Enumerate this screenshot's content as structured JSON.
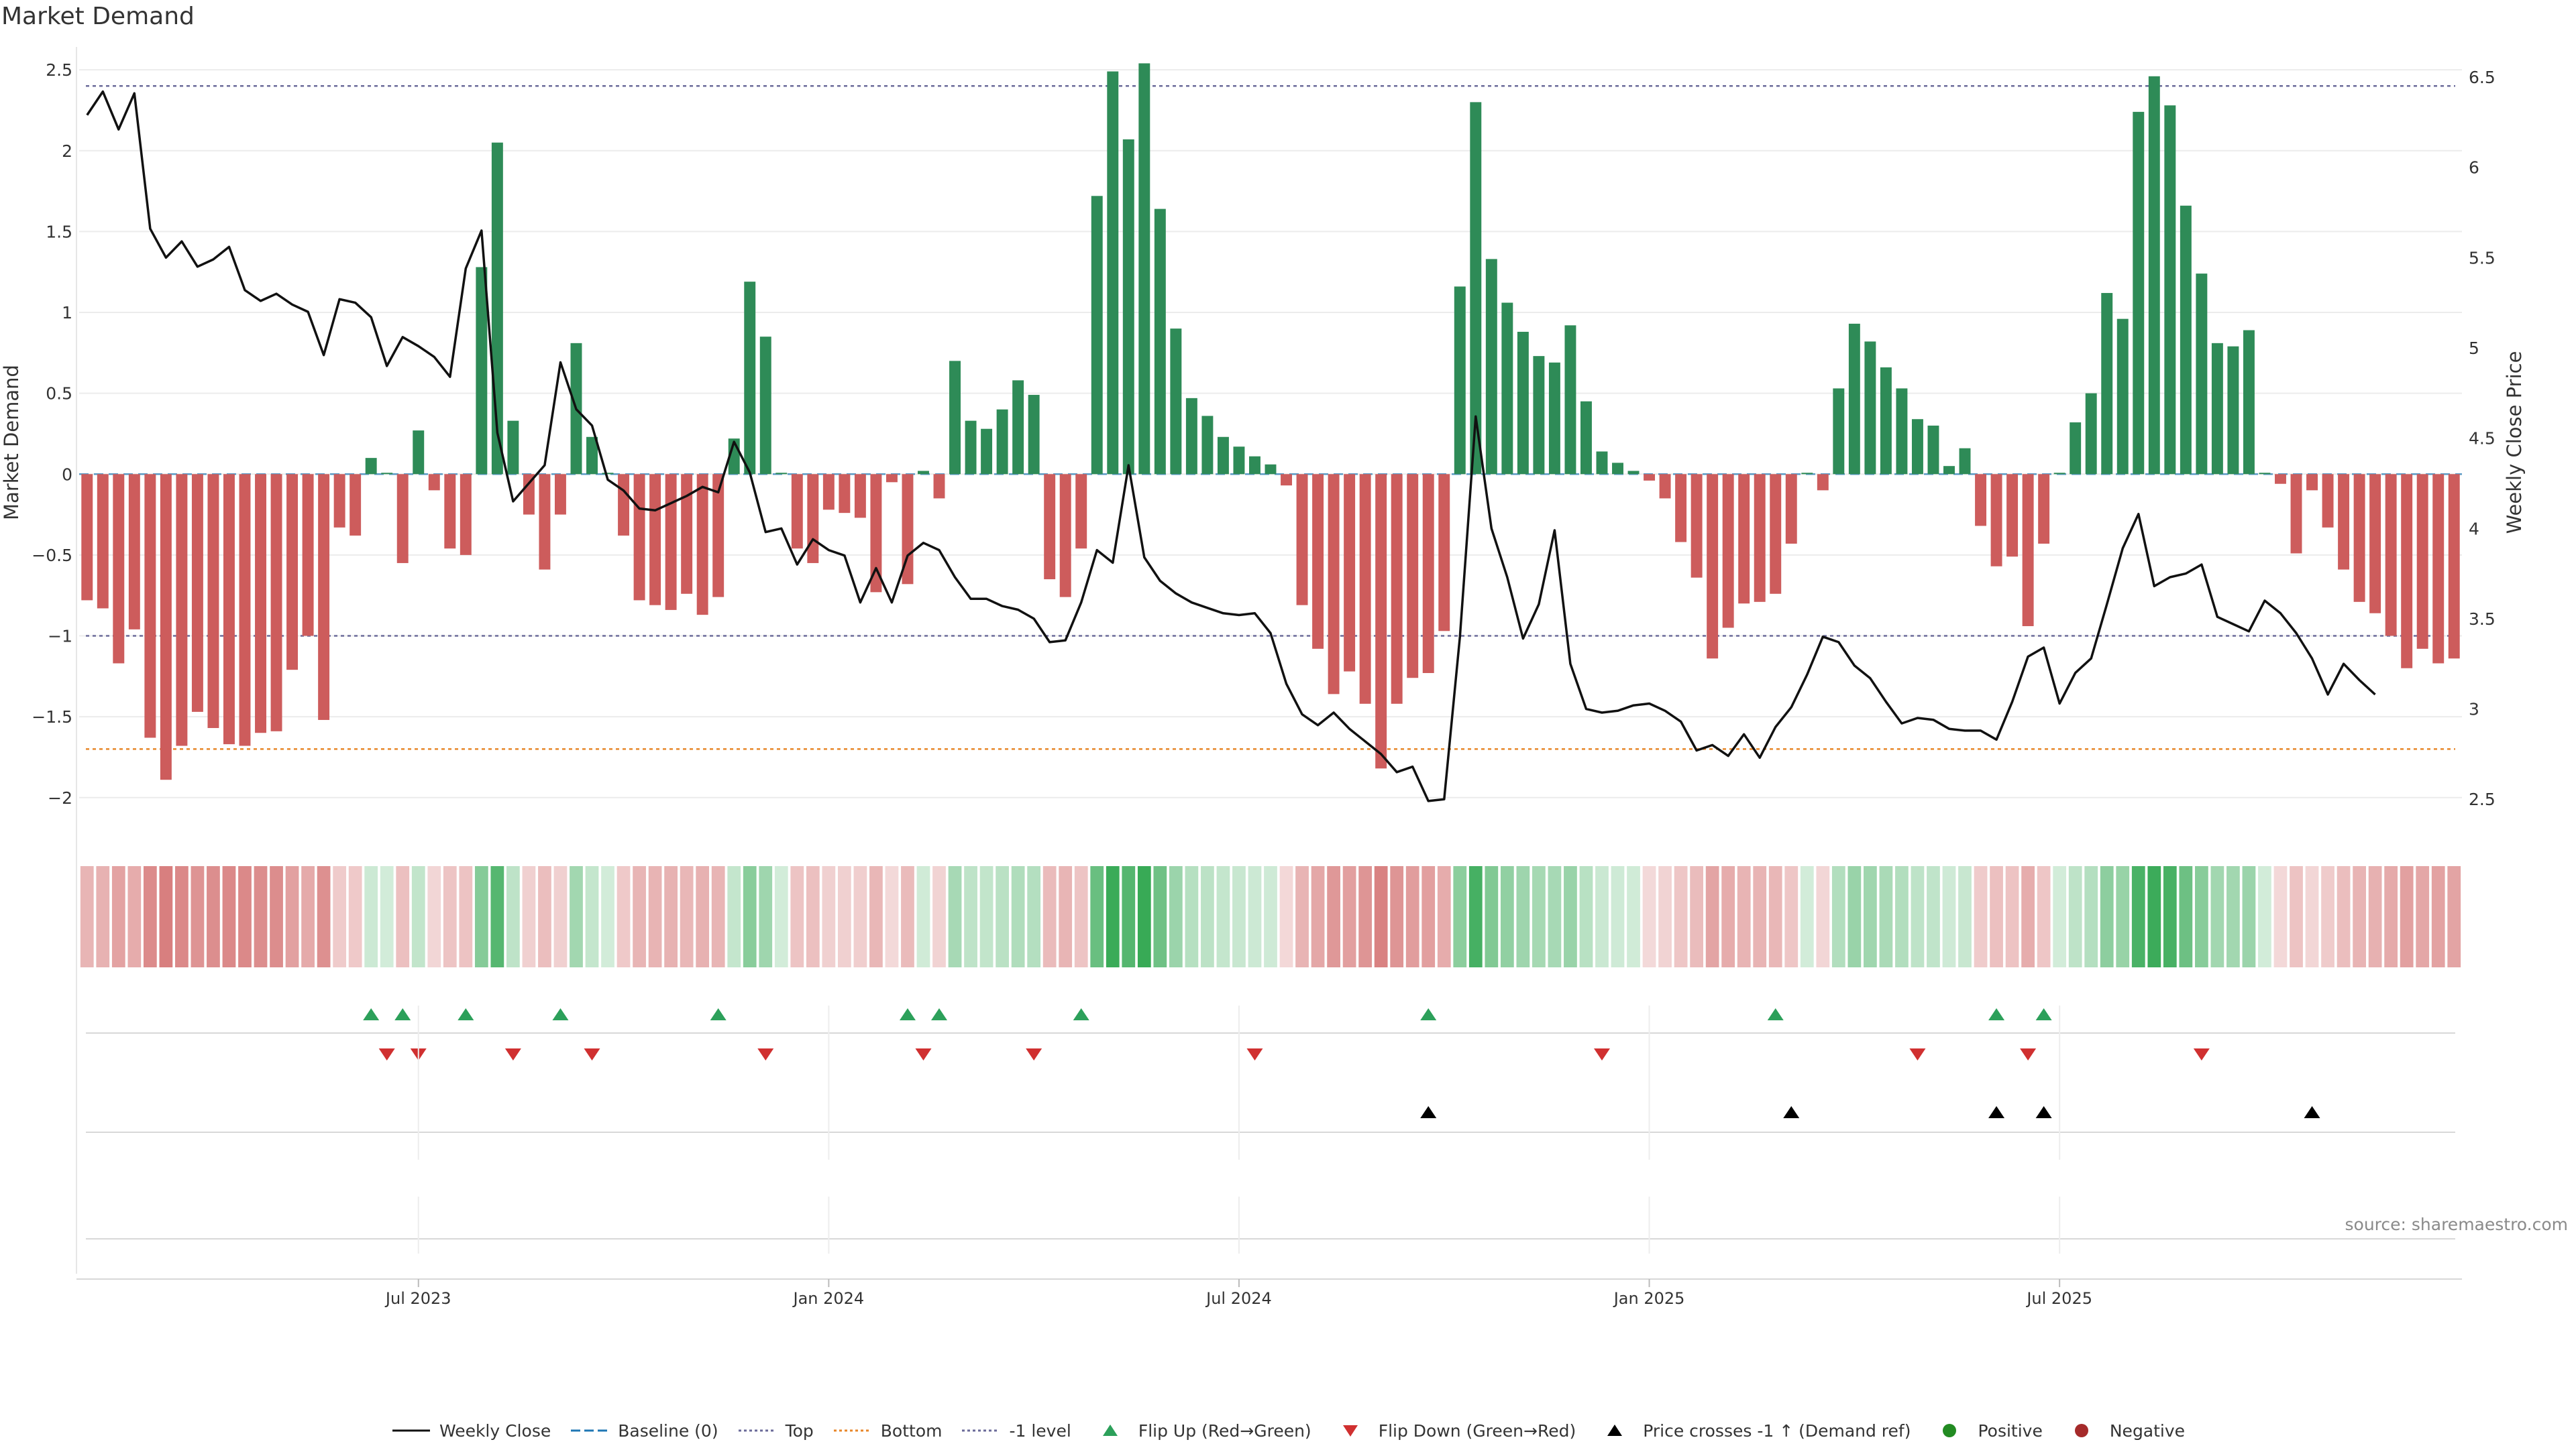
{
  "title": "Market Demand",
  "source": "source: sharemaestro.com",
  "colors": {
    "positive": "#2e8b57",
    "negative": "#cd5c5c",
    "close": "#111111",
    "top_line": "#6b6b9a",
    "bottom_line": "#e8872b",
    "minus1_line": "#6b6b9a",
    "flip_up": "#2ca05a",
    "flip_down": "#d03030",
    "cross": "#000000",
    "pos_dot": "#228b22",
    "neg_dot": "#a52a2a",
    "baseline": "#1f77b4"
  },
  "chart_data": {
    "type": "bar",
    "title": "Market Demand",
    "ylabel": "Market Demand",
    "y2label": "Weekly Close Price",
    "ylim": [
      -2.2,
      2.6
    ],
    "y2lim": [
      2.33,
      6.63
    ],
    "yticks": [
      "2.5",
      "2",
      "1.5",
      "1",
      "0.5",
      "0",
      "−0.5",
      "−1",
      "−1.5",
      "−2"
    ],
    "yticks_values": [
      2.5,
      2,
      1.5,
      1,
      0.5,
      0,
      -0.5,
      -1,
      -1.5,
      -2
    ],
    "y2ticks": [
      "6.5",
      "6",
      "5.5",
      "5",
      "4.5",
      "4",
      "3.5",
      "3",
      "2.5"
    ],
    "y2ticks_values": [
      6.5,
      6,
      5.5,
      5,
      4.5,
      4,
      3.5,
      3,
      2.5
    ],
    "xticks": [
      "Jul 2023",
      "Jan 2024",
      "Jul 2024",
      "Jan 2025",
      "Jul 2025"
    ],
    "xticks_index": [
      21,
      47,
      73,
      99,
      125
    ],
    "top_level": 2.4,
    "bottom_level": -1.7,
    "minus1_level": -1,
    "demand": [
      -0.78,
      -0.83,
      -1.17,
      -0.96,
      -1.63,
      -1.89,
      -1.68,
      -1.47,
      -1.57,
      -1.67,
      -1.68,
      -1.6,
      -1.59,
      -1.21,
      -1.0,
      -1.52,
      -0.33,
      -0.38,
      0.1,
      0.0,
      -0.55,
      0.27,
      -0.1,
      -0.46,
      -0.5,
      1.28,
      2.05,
      0.33,
      -0.25,
      -0.59,
      -0.25,
      0.81,
      0.23,
      0.0,
      -0.38,
      -0.78,
      -0.81,
      -0.84,
      -0.74,
      -0.87,
      -0.76,
      0.22,
      1.19,
      0.85,
      0.0,
      -0.46,
      -0.55,
      -0.22,
      -0.24,
      -0.27,
      -0.73,
      -0.05,
      -0.68,
      0.02,
      -0.15,
      0.7,
      0.33,
      0.28,
      0.4,
      0.58,
      0.49,
      -0.65,
      -0.76,
      -0.46,
      1.72,
      2.49,
      2.07,
      2.54,
      1.64,
      0.9,
      0.47,
      0.36,
      0.23,
      0.17,
      0.11,
      0.06,
      -0.07,
      -0.81,
      -1.08,
      -1.36,
      -1.22,
      -1.42,
      -1.82,
      -1.42,
      -1.26,
      -1.23,
      -0.97,
      1.16,
      2.3,
      1.33,
      1.06,
      0.88,
      0.73,
      0.69,
      0.92,
      0.45,
      0.14,
      0.07,
      0.02,
      -0.04,
      -0.15,
      -0.42,
      -0.64,
      -1.14,
      -0.95,
      -0.8,
      -0.79,
      -0.74,
      -0.43,
      0.0,
      -0.1,
      0.53,
      0.93,
      0.82,
      0.66,
      0.53,
      0.34,
      0.3,
      0.05,
      0.16,
      -0.32,
      -0.57,
      -0.51,
      -0.94,
      -0.43,
      0.0,
      0.32,
      0.5,
      1.12,
      0.96,
      2.24,
      2.46,
      2.28,
      1.66,
      1.24,
      0.81,
      0.79,
      0.89,
      0.0,
      -0.06,
      -0.49,
      -0.1,
      -0.33,
      -0.59,
      -0.79,
      -0.86,
      -1.0,
      -1.2,
      -1.08,
      -1.17,
      -1.14
    ],
    "close": [
      6.29,
      6.42,
      6.21,
      6.41,
      5.66,
      5.5,
      5.59,
      5.45,
      5.49,
      5.56,
      5.32,
      5.26,
      5.3,
      5.24,
      5.2,
      4.96,
      5.27,
      5.25,
      5.17,
      4.9,
      5.06,
      5.01,
      4.95,
      4.84,
      5.44,
      5.65,
      4.53,
      4.15,
      4.25,
      4.35,
      4.92,
      4.66,
      4.57,
      4.27,
      4.21,
      4.11,
      4.1,
      4.14,
      4.18,
      4.23,
      4.2,
      4.48,
      4.31,
      3.98,
      4.0,
      3.8,
      3.94,
      3.88,
      3.85,
      3.59,
      3.78,
      3.59,
      3.85,
      3.92,
      3.88,
      3.73,
      3.61,
      3.61,
      3.57,
      3.55,
      3.5,
      3.37,
      3.38,
      3.59,
      3.88,
      3.81,
      4.35,
      3.84,
      3.71,
      3.64,
      3.59,
      3.56,
      3.53,
      3.52,
      3.53,
      3.42,
      3.14,
      2.97,
      2.91,
      2.98,
      2.89,
      2.82,
      2.75,
      2.65,
      2.68,
      2.49,
      2.5,
      3.4,
      4.62,
      4.0,
      3.73,
      3.39,
      3.58,
      3.99,
      3.25,
      3.0,
      2.98,
      2.99,
      3.02,
      3.03,
      2.99,
      2.93,
      2.77,
      2.8,
      2.74,
      2.86,
      2.73,
      2.9,
      3.01,
      3.19,
      3.4,
      3.37,
      3.24,
      3.17,
      3.04,
      2.92,
      2.95,
      2.94,
      2.89,
      2.88,
      2.88,
      2.83,
      3.04,
      3.29,
      3.34,
      3.03,
      3.2,
      3.28,
      3.58,
      3.89,
      4.08,
      3.68,
      3.73,
      3.75,
      3.8,
      3.51,
      3.47,
      3.43,
      3.6,
      3.53,
      3.42,
      3.28,
      3.08,
      3.25,
      3.16,
      3.08
    ],
    "flip_up": [
      18,
      20,
      24,
      30,
      40,
      52,
      54,
      63,
      85,
      107,
      121,
      124
    ],
    "flip_down": [
      19,
      21,
      27,
      32,
      43,
      53,
      60,
      74,
      96,
      116,
      123,
      134
    ],
    "price_cross_up": [
      85,
      108,
      121,
      124,
      141
    ]
  },
  "legend": [
    {
      "label": "Weekly Close",
      "icon": "line-solid"
    },
    {
      "label": "Baseline (0)",
      "icon": "line-dashed-blue"
    },
    {
      "label": "Top",
      "icon": "line-dotted-purple"
    },
    {
      "label": "Bottom",
      "icon": "line-dotted-orange"
    },
    {
      "label": "-1 level",
      "icon": "line-dotted-purple"
    },
    {
      "label": "Flip Up (Red→Green)",
      "icon": "triangle-up-green"
    },
    {
      "label": "Flip Down (Green→Red)",
      "icon": "triangle-down-red"
    },
    {
      "label": "Price crosses -1 ↑ (Demand ref)",
      "icon": "triangle-up-black"
    },
    {
      "label": "Positive",
      "icon": "circle-green"
    },
    {
      "label": "Negative",
      "icon": "circle-red"
    }
  ]
}
